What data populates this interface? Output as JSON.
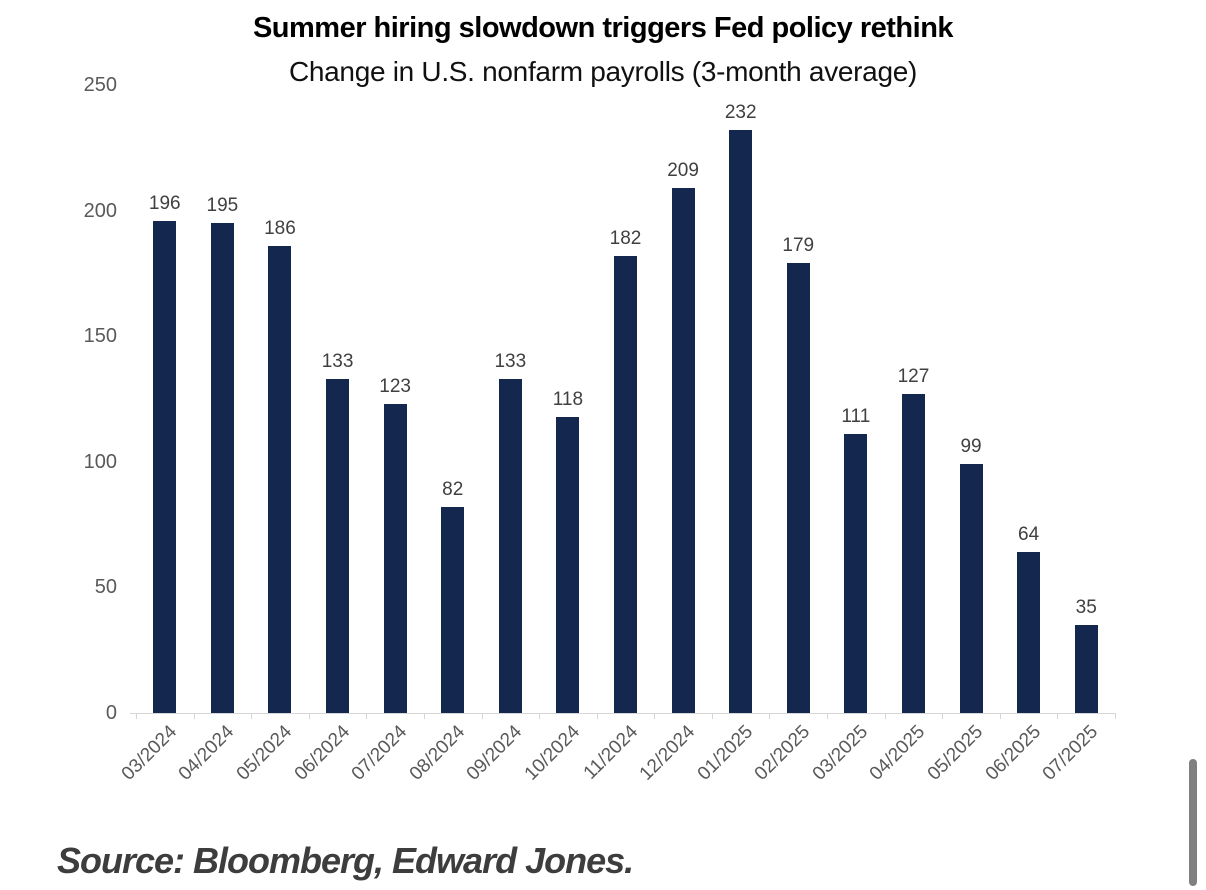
{
  "chart_data": {
    "type": "bar",
    "title": "Summer hiring slowdown triggers Fed policy rethink",
    "subtitle": "Change in U.S. nonfarm payrolls (3-month average)",
    "categories": [
      "03/2024",
      "04/2024",
      "05/2024",
      "06/2024",
      "07/2024",
      "08/2024",
      "09/2024",
      "10/2024",
      "11/2024",
      "12/2024",
      "01/2025",
      "02/2025",
      "03/2025",
      "04/2025",
      "05/2025",
      "06/2025",
      "07/2025"
    ],
    "values": [
      196,
      195,
      186,
      133,
      123,
      82,
      133,
      118,
      182,
      209,
      232,
      179,
      111,
      127,
      99,
      64,
      35
    ],
    "yticks": [
      0,
      50,
      100,
      150,
      200,
      250
    ],
    "ylim": [
      0,
      250
    ],
    "xlabel": "",
    "ylabel": "",
    "grid": "off",
    "legend": "none",
    "bar_color": "#14284f",
    "data_labels": "above-bars"
  },
  "footer": {
    "source": "Source: Bloomberg, Edward Jones."
  },
  "colors": {
    "bar": "#14284f",
    "axis": "#d6d6d6",
    "tick_label": "#595959",
    "value_label": "#404040",
    "title": "#000000",
    "source_text": "#3d3d3d",
    "scrollbar": "#808080",
    "background": "#ffffff"
  }
}
